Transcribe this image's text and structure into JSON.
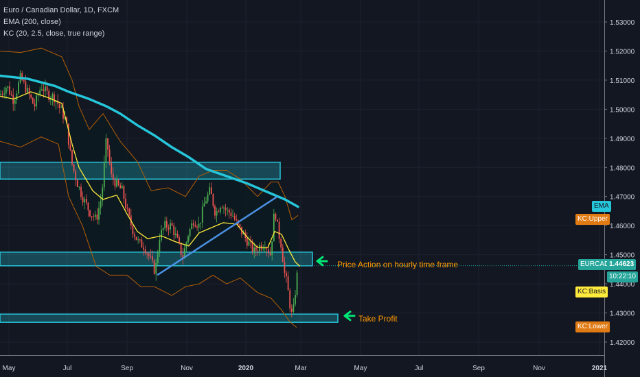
{
  "chart_data": {
    "type": "candlestick",
    "symbol_title": "Euro / Canadian Dollar, 1D, FXCM",
    "indicators": [
      "EMA (200, close)",
      "KC (20, 2.5, close, true range)"
    ],
    "x_tick_labels": [
      "May",
      "Jul",
      "Sep",
      "Nov",
      "2020",
      "Mar",
      "May",
      "Jul",
      "Sep",
      "Nov",
      "2021"
    ],
    "y_tick_labels": [
      "1.53000",
      "1.52000",
      "1.51000",
      "1.50000",
      "1.49000",
      "1.48000",
      "1.47000",
      "1.46000",
      "1.45000",
      "1.44000",
      "1.43000",
      "1.42000"
    ],
    "ylim": [
      1.4145,
      1.5385
    ],
    "y_ticks": [
      1.53,
      1.52,
      1.51,
      1.5,
      1.49,
      1.48,
      1.47,
      1.46,
      1.45,
      1.44,
      1.43,
      1.42
    ],
    "last_price": 1.44623,
    "price_tag": {
      "symbol": "EURCAD",
      "value": "1.44623",
      "countdown": "10:22:10"
    },
    "badges": {
      "ema": "EMA",
      "kc_upper": "KC:Upper",
      "kc_basis": "KC:Basis",
      "kc_lower": "KC:Lower"
    },
    "ema_path": [
      [
        0,
        1.5115
      ],
      [
        40,
        1.5105
      ],
      [
        80,
        1.508
      ],
      [
        100,
        1.506
      ],
      [
        130,
        1.5035
      ],
      [
        155,
        1.501
      ],
      [
        175,
        1.4985
      ],
      [
        200,
        1.4945
      ],
      [
        225,
        1.491
      ],
      [
        250,
        1.487
      ],
      [
        275,
        1.4835
      ],
      [
        300,
        1.4795
      ],
      [
        330,
        1.477
      ],
      [
        360,
        1.4745
      ],
      [
        390,
        1.4715
      ],
      [
        415,
        1.469
      ],
      [
        434,
        1.4665
      ]
    ],
    "kc_basis_path": [
      [
        0,
        1.5045
      ],
      [
        20,
        1.5035
      ],
      [
        45,
        1.506
      ],
      [
        70,
        1.504
      ],
      [
        90,
        1.502
      ],
      [
        105,
        1.488
      ],
      [
        115,
        1.48
      ],
      [
        135,
        1.472
      ],
      [
        150,
        1.469
      ],
      [
        170,
        1.4705
      ],
      [
        185,
        1.464
      ],
      [
        200,
        1.458
      ],
      [
        215,
        1.4555
      ],
      [
        235,
        1.4565
      ],
      [
        255,
        1.4545
      ],
      [
        275,
        1.453
      ],
      [
        290,
        1.4575
      ],
      [
        305,
        1.459
      ],
      [
        325,
        1.461
      ],
      [
        345,
        1.4605
      ],
      [
        360,
        1.456
      ],
      [
        375,
        1.4525
      ],
      [
        390,
        1.4525
      ],
      [
        400,
        1.458
      ],
      [
        410,
        1.457
      ],
      [
        420,
        1.452
      ],
      [
        430,
        1.4475
      ],
      [
        437,
        1.446
      ]
    ],
    "kc_upper_path": [
      [
        0,
        1.52
      ],
      [
        30,
        1.5195
      ],
      [
        60,
        1.521
      ],
      [
        90,
        1.518
      ],
      [
        105,
        1.51
      ],
      [
        115,
        1.501
      ],
      [
        130,
        1.493
      ],
      [
        150,
        1.4985
      ],
      [
        175,
        1.489
      ],
      [
        200,
        1.482
      ],
      [
        220,
        1.472
      ],
      [
        245,
        1.473
      ],
      [
        270,
        1.47
      ],
      [
        290,
        1.477
      ],
      [
        310,
        1.479
      ],
      [
        330,
        1.479
      ],
      [
        350,
        1.476
      ],
      [
        375,
        1.47
      ],
      [
        395,
        1.475
      ],
      [
        405,
        1.475
      ],
      [
        415,
        1.47
      ],
      [
        425,
        1.462
      ],
      [
        434,
        1.4635
      ]
    ],
    "kc_lower_path": [
      [
        0,
        1.489
      ],
      [
        30,
        1.487
      ],
      [
        60,
        1.4905
      ],
      [
        85,
        1.488
      ],
      [
        100,
        1.47
      ],
      [
        120,
        1.46
      ],
      [
        140,
        1.446
      ],
      [
        160,
        1.443
      ],
      [
        185,
        1.443
      ],
      [
        205,
        1.439
      ],
      [
        225,
        1.439
      ],
      [
        250,
        1.436
      ],
      [
        270,
        1.439
      ],
      [
        290,
        1.44
      ],
      [
        310,
        1.443
      ],
      [
        330,
        1.44
      ],
      [
        350,
        1.442
      ],
      [
        375,
        1.437
      ],
      [
        395,
        1.435
      ],
      [
        410,
        1.431
      ],
      [
        422,
        1.427
      ],
      [
        432,
        1.425
      ]
    ],
    "close_path": [
      [
        0,
        1.505
      ],
      [
        10,
        1.508
      ],
      [
        20,
        1.503
      ],
      [
        30,
        1.511
      ],
      [
        40,
        1.506
      ],
      [
        50,
        1.501
      ],
      [
        60,
        1.508
      ],
      [
        70,
        1.505
      ],
      [
        80,
        1.504
      ],
      [
        88,
        1.5
      ],
      [
        96,
        1.496
      ],
      [
        104,
        1.482
      ],
      [
        112,
        1.475
      ],
      [
        120,
        1.47
      ],
      [
        130,
        1.465
      ],
      [
        140,
        1.462
      ],
      [
        148,
        1.47
      ],
      [
        155,
        1.49
      ],
      [
        162,
        1.477
      ],
      [
        170,
        1.474
      ],
      [
        178,
        1.472
      ],
      [
        186,
        1.464
      ],
      [
        194,
        1.458
      ],
      [
        202,
        1.454
      ],
      [
        210,
        1.453
      ],
      [
        218,
        1.449
      ],
      [
        226,
        1.444
      ],
      [
        232,
        1.456
      ],
      [
        240,
        1.46
      ],
      [
        250,
        1.46
      ],
      [
        258,
        1.455
      ],
      [
        266,
        1.449
      ],
      [
        274,
        1.457
      ],
      [
        282,
        1.462
      ],
      [
        290,
        1.46
      ],
      [
        298,
        1.468
      ],
      [
        306,
        1.472
      ],
      [
        314,
        1.464
      ],
      [
        322,
        1.468
      ],
      [
        330,
        1.465
      ],
      [
        338,
        1.464
      ],
      [
        346,
        1.46
      ],
      [
        354,
        1.457
      ],
      [
        362,
        1.454
      ],
      [
        370,
        1.451
      ],
      [
        378,
        1.453
      ],
      [
        386,
        1.454
      ],
      [
        394,
        1.45
      ],
      [
        400,
        1.466
      ],
      [
        405,
        1.458
      ],
      [
        410,
        1.453
      ],
      [
        414,
        1.444
      ],
      [
        418,
        1.44
      ],
      [
        422,
        1.433
      ],
      [
        426,
        1.428
      ],
      [
        429,
        1.435
      ],
      [
        432,
        1.442
      ],
      [
        435,
        1.4462
      ]
    ],
    "zones": [
      {
        "name": "resistance-zone",
        "x1": 0,
        "x2": 408,
        "y_top": 1.4818,
        "y_bottom": 1.476,
        "color": "#26c6da"
      },
      {
        "name": "support-zone",
        "x1": 0,
        "x2": 455,
        "y_top": 1.4509,
        "y_bottom": 1.4462,
        "color": "#26c6da"
      },
      {
        "name": "take-profit-zone",
        "x1": 0,
        "x2": 492,
        "y_top": 1.4296,
        "y_bottom": 1.4268,
        "color": "#26c6da"
      }
    ],
    "trendline": [
      [
        229,
        1.443
      ],
      [
        404,
        1.47
      ]
    ],
    "annotations": [
      {
        "name": "price-action-note",
        "text": "Price Action on hourly time frame",
        "x": 491,
        "y": 1.4455
      },
      {
        "name": "take-profit-note",
        "text": "Take Profit",
        "x": 522,
        "y": 1.429
      }
    ],
    "colors": {
      "ema": "#26c6da",
      "kc_basis": "#ffeb3b",
      "kc_band": "#b45f06",
      "candle_up": "#26a69a",
      "candle_down": "#ef5350",
      "wick_up": "#4caf50",
      "arrow": "#00e676",
      "annotation": "#ff9800"
    }
  }
}
